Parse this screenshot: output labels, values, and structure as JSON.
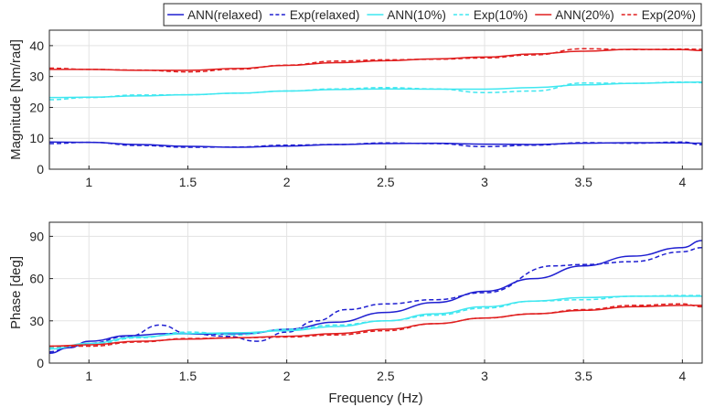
{
  "legend": [
    {
      "label": "ANN(relaxed)",
      "color": "#1f1fd1",
      "dashed": false
    },
    {
      "label": "Exp(relaxed)",
      "color": "#1f1fd1",
      "dashed": true
    },
    {
      "label": "ANN(10%)",
      "color": "#3fe7f0",
      "dashed": false
    },
    {
      "label": "Exp(10%)",
      "color": "#3fe7f0",
      "dashed": true
    },
    {
      "label": "ANN(20%)",
      "color": "#e01f1f",
      "dashed": false
    },
    {
      "label": "Exp(20%)",
      "color": "#e01f1f",
      "dashed": true
    }
  ],
  "chart_data": [
    {
      "type": "line",
      "title": "",
      "xlabel": "",
      "ylabel": "Magnitude [Nm/rad]",
      "xlim": [
        0.8,
        4.1
      ],
      "ylim": [
        0,
        45
      ],
      "xticks": [
        1,
        1.5,
        2,
        2.5,
        3,
        3.5,
        4
      ],
      "xtick_labels": [
        "1",
        "1.5",
        "2",
        "2.5",
        "3",
        "3.5",
        "4"
      ],
      "yticks": [
        0,
        10,
        20,
        30,
        40
      ],
      "ytick_labels": [
        "0",
        "10",
        "20",
        "30",
        "40"
      ],
      "grid": true,
      "series": [
        {
          "name": "ANN(relaxed)",
          "color": "#1f1fd1",
          "dashed": false,
          "x": [
            0.8,
            1.0,
            1.25,
            1.5,
            1.75,
            2.0,
            2.25,
            2.5,
            2.75,
            3.0,
            3.25,
            3.5,
            3.75,
            4.0,
            4.1
          ],
          "y": [
            8.8,
            8.7,
            8.0,
            7.4,
            7.1,
            7.5,
            8.0,
            8.3,
            8.4,
            8.1,
            8.0,
            8.4,
            8.6,
            8.5,
            8.4
          ]
        },
        {
          "name": "Exp(relaxed)",
          "color": "#1f1fd1",
          "dashed": true,
          "x": [
            0.8,
            1.0,
            1.25,
            1.5,
            1.75,
            2.0,
            2.25,
            2.5,
            2.75,
            3.0,
            3.25,
            3.5,
            3.75,
            4.0,
            4.1
          ],
          "y": [
            8.3,
            8.7,
            7.7,
            7.1,
            7.2,
            7.8,
            8.0,
            8.5,
            8.3,
            7.3,
            7.8,
            8.6,
            8.4,
            8.8,
            7.9
          ]
        },
        {
          "name": "ANN(10%)",
          "color": "#3fe7f0",
          "dashed": false,
          "x": [
            0.8,
            1.0,
            1.25,
            1.5,
            1.75,
            2.0,
            2.25,
            2.5,
            2.75,
            3.0,
            3.25,
            3.5,
            3.75,
            4.0,
            4.1
          ],
          "y": [
            23.2,
            23.3,
            23.7,
            24.1,
            24.6,
            25.3,
            25.8,
            26.0,
            25.9,
            25.9,
            26.4,
            27.3,
            27.8,
            28.1,
            28.2
          ]
        },
        {
          "name": "Exp(10%)",
          "color": "#3fe7f0",
          "dashed": true,
          "x": [
            0.8,
            1.0,
            1.25,
            1.5,
            1.75,
            2.0,
            2.25,
            2.5,
            2.75,
            3.0,
            3.25,
            3.5,
            3.75,
            4.0,
            4.1
          ],
          "y": [
            22.5,
            23.2,
            24.0,
            24.1,
            24.6,
            25.3,
            26.0,
            26.4,
            26.0,
            24.8,
            25.3,
            27.9,
            27.8,
            28.2,
            28.0
          ]
        },
        {
          "name": "ANN(20%)",
          "color": "#e01f1f",
          "dashed": false,
          "x": [
            0.8,
            1.0,
            1.25,
            1.5,
            1.75,
            2.0,
            2.25,
            2.5,
            2.75,
            3.0,
            3.25,
            3.5,
            3.75,
            4.0,
            4.1
          ],
          "y": [
            32.3,
            32.3,
            32.0,
            32.0,
            32.6,
            33.6,
            34.5,
            35.1,
            35.7,
            36.3,
            37.3,
            38.2,
            38.8,
            38.7,
            38.4
          ]
        },
        {
          "name": "Exp(20%)",
          "color": "#e01f1f",
          "dashed": true,
          "x": [
            0.8,
            1.0,
            1.25,
            1.5,
            1.75,
            2.0,
            2.25,
            2.5,
            2.75,
            3.0,
            3.25,
            3.5,
            3.75,
            4.0,
            4.1
          ],
          "y": [
            32.7,
            32.3,
            32.1,
            31.5,
            32.4,
            33.7,
            35.0,
            35.4,
            35.6,
            36.0,
            37.0,
            39.0,
            38.7,
            38.9,
            38.8
          ]
        }
      ]
    },
    {
      "type": "line",
      "title": "",
      "xlabel": "Frequency (Hz)",
      "ylabel": "Phase [deg]",
      "xlim": [
        0.8,
        4.1
      ],
      "ylim": [
        0,
        100
      ],
      "xticks": [
        1,
        1.5,
        2,
        2.5,
        3,
        3.5,
        4
      ],
      "xtick_labels": [
        "1",
        "1.5",
        "2",
        "2.5",
        "3",
        "3.5",
        "4"
      ],
      "yticks": [
        0,
        30,
        60,
        90
      ],
      "ytick_labels": [
        "0",
        "30",
        "60",
        "90"
      ],
      "grid": true,
      "series": [
        {
          "name": "ANN(relaxed)",
          "color": "#1f1fd1",
          "dashed": false,
          "x": [
            0.8,
            0.9,
            1.0,
            1.2,
            1.4,
            1.6,
            1.8,
            2.0,
            2.25,
            2.5,
            2.75,
            3.0,
            3.25,
            3.5,
            3.75,
            4.0,
            4.1
          ],
          "y": [
            7,
            11,
            15.5,
            19.5,
            21,
            20.5,
            21,
            24,
            29,
            36,
            43,
            51,
            60,
            69,
            76,
            82,
            87
          ]
        },
        {
          "name": "Exp(relaxed)",
          "color": "#1f1fd1",
          "dashed": true,
          "x": [
            0.8,
            0.9,
            1.0,
            1.2,
            1.36,
            1.5,
            1.7,
            1.85,
            2.0,
            2.15,
            2.3,
            2.5,
            2.75,
            3.0,
            3.35,
            3.5,
            3.75,
            4.0,
            4.1
          ],
          "y": [
            8,
            11,
            14,
            19,
            27,
            21,
            19,
            15.5,
            22,
            30,
            38,
            42,
            45,
            50,
            69,
            70,
            72,
            79,
            82
          ]
        },
        {
          "name": "ANN(10%)",
          "color": "#3fe7f0",
          "dashed": false,
          "x": [
            0.8,
            1.0,
            1.25,
            1.5,
            1.75,
            2.0,
            2.25,
            2.5,
            2.75,
            3.0,
            3.25,
            3.5,
            3.75,
            4.0,
            4.1
          ],
          "y": [
            10,
            14,
            18.5,
            21,
            21.5,
            23,
            26,
            30,
            35,
            40,
            44,
            46.5,
            47.5,
            47.5,
            47.5
          ]
        },
        {
          "name": "Exp(10%)",
          "color": "#3fe7f0",
          "dashed": true,
          "x": [
            0.8,
            1.0,
            1.25,
            1.5,
            1.75,
            2.0,
            2.25,
            2.5,
            2.75,
            3.0,
            3.25,
            3.5,
            3.75,
            4.0,
            4.1
          ],
          "y": [
            11,
            13,
            18,
            22,
            20,
            24,
            27,
            30,
            34,
            39,
            44,
            45,
            47.5,
            48,
            48
          ]
        },
        {
          "name": "ANN(20%)",
          "color": "#e01f1f",
          "dashed": false,
          "x": [
            0.8,
            1.0,
            1.25,
            1.5,
            1.75,
            2.0,
            2.25,
            2.5,
            2.75,
            3.0,
            3.25,
            3.5,
            3.75,
            4.0,
            4.1
          ],
          "y": [
            12,
            13,
            15.5,
            17,
            18,
            19,
            21,
            24,
            28,
            32,
            35,
            37.5,
            40,
            41,
            41
          ]
        },
        {
          "name": "Exp(20%)",
          "color": "#e01f1f",
          "dashed": true,
          "x": [
            0.8,
            1.0,
            1.25,
            1.5,
            1.75,
            2.0,
            2.25,
            2.5,
            2.75,
            3.0,
            3.25,
            3.5,
            3.75,
            4.0,
            4.1
          ],
          "y": [
            12,
            12,
            15,
            17.5,
            18,
            18.5,
            20,
            23,
            28,
            32,
            35,
            38,
            41,
            42,
            40
          ]
        }
      ]
    }
  ]
}
